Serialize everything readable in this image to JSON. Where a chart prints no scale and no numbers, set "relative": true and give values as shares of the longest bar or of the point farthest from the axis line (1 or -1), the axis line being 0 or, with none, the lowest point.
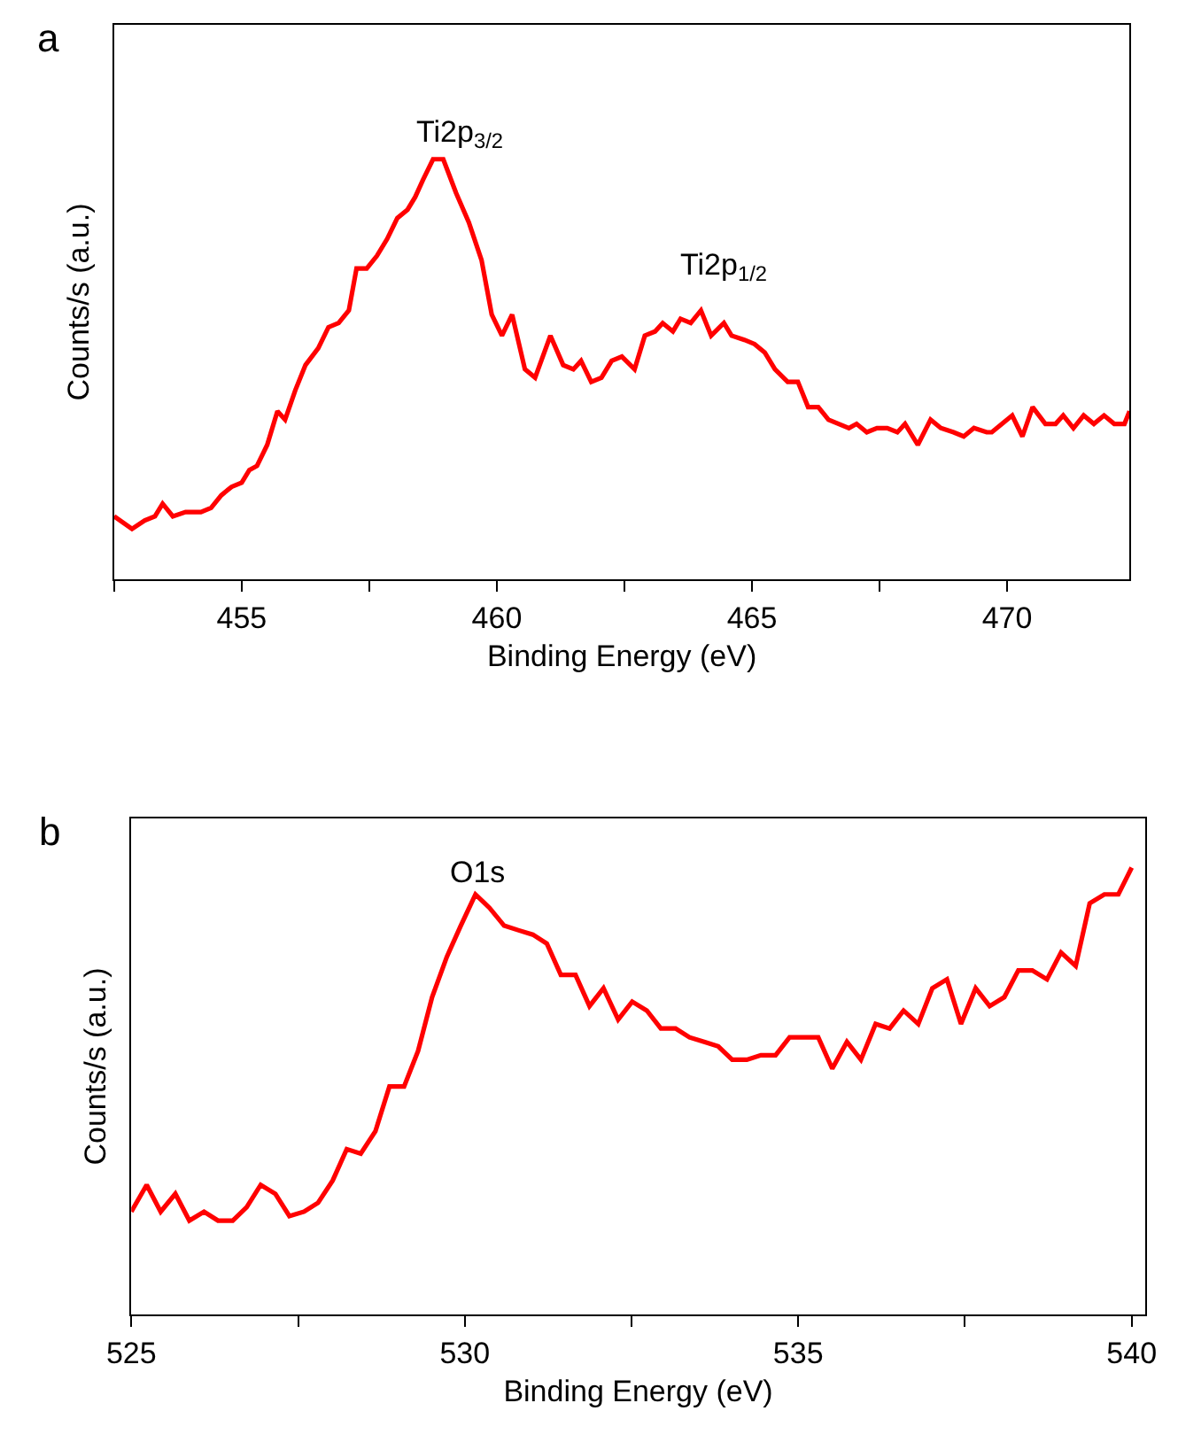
{
  "chart_data": [
    {
      "type": "line",
      "relative": true,
      "xlabel": "Binding Energy (eV)",
      "ylabel": "Counts/s (a.u.)",
      "xlim": [
        452.5,
        472.4
      ],
      "xticks": [
        {
          "value": 452.5,
          "label": null
        },
        455,
        {
          "value": 457.5,
          "label": null
        },
        460,
        {
          "value": 462.5,
          "label": null
        },
        465,
        {
          "value": 467.5,
          "label": null
        },
        470
      ],
      "marker": "none",
      "line_style": "solid",
      "annotations": [
        "a",
        "Ti2p$_{3/2}$",
        "Ti2p$_{1/2}$"
      ],
      "series": [
        {
          "color": "#ff0000",
          "x": [
            452.5,
            452.85,
            453.1,
            453.3,
            453.45,
            453.65,
            453.9,
            454.2,
            454.4,
            454.6,
            454.8,
            455.0,
            455.15,
            455.3,
            455.5,
            455.7,
            455.85,
            456.05,
            456.25,
            456.5,
            456.7,
            456.9,
            457.1,
            457.25,
            457.45,
            457.65,
            457.85,
            458.05,
            458.25,
            458.4,
            458.55,
            458.75,
            458.95,
            459.2,
            459.45,
            459.7,
            459.9,
            460.1,
            460.3,
            460.55,
            460.75,
            461.05,
            461.3,
            461.5,
            461.65,
            461.85,
            462.05,
            462.25,
            462.45,
            462.7,
            462.9,
            463.1,
            463.25,
            463.45,
            463.6,
            463.8,
            464.0,
            464.2,
            464.45,
            464.6,
            464.85,
            465.05,
            465.25,
            465.45,
            465.7,
            465.9,
            466.1,
            466.3,
            466.5,
            466.7,
            466.9,
            467.05,
            467.25,
            467.45,
            467.65,
            467.85,
            468.0,
            468.25,
            468.5,
            468.7,
            468.95,
            469.15,
            469.35,
            469.6,
            469.7,
            469.9,
            470.1,
            470.3,
            470.5,
            470.75,
            470.95,
            471.1,
            471.3,
            471.5,
            471.7,
            471.9,
            472.1,
            472.3,
            472.4
          ],
          "values": [
            0.15,
            0.12,
            0.14,
            0.15,
            0.18,
            0.15,
            0.16,
            0.16,
            0.17,
            0.2,
            0.22,
            0.23,
            0.26,
            0.27,
            0.32,
            0.4,
            0.38,
            0.45,
            0.51,
            0.55,
            0.6,
            0.61,
            0.64,
            0.74,
            0.74,
            0.77,
            0.81,
            0.86,
            0.88,
            0.91,
            0.95,
            1.0,
            1.0,
            0.92,
            0.85,
            0.76,
            0.63,
            0.58,
            0.63,
            0.5,
            0.48,
            0.58,
            0.51,
            0.5,
            0.52,
            0.47,
            0.48,
            0.52,
            0.53,
            0.5,
            0.58,
            0.59,
            0.61,
            0.59,
            0.62,
            0.61,
            0.64,
            0.58,
            0.61,
            0.58,
            0.57,
            0.56,
            0.54,
            0.5,
            0.47,
            0.47,
            0.41,
            0.41,
            0.38,
            0.37,
            0.36,
            0.37,
            0.35,
            0.36,
            0.36,
            0.35,
            0.37,
            0.32,
            0.38,
            0.36,
            0.35,
            0.34,
            0.36,
            0.35,
            0.35,
            0.37,
            0.39,
            0.34,
            0.41,
            0.37,
            0.37,
            0.39,
            0.36,
            0.39,
            0.37,
            0.39,
            0.37,
            0.37,
            0.4
          ]
        }
      ]
    },
    {
      "type": "line",
      "relative": true,
      "xlabel": "Binding Energy (eV)",
      "ylabel": "Counts/s (a.u.)",
      "xlim": [
        525,
        540.2
      ],
      "xticks": [
        525,
        {
          "value": 527.5,
          "label": null
        },
        530,
        {
          "value": 532.5,
          "label": null
        },
        535,
        {
          "value": 537.5,
          "label": null
        },
        540
      ],
      "marker": "none",
      "line_style": "solid",
      "annotations": [
        "b",
        "O1s"
      ],
      "series": [
        {
          "color": "#ff0000",
          "x": [
            525.0,
            525.23,
            525.44,
            525.66,
            525.87,
            526.09,
            526.3,
            526.52,
            526.73,
            526.94,
            527.16,
            527.37,
            527.59,
            527.8,
            528.02,
            528.23,
            528.44,
            528.66,
            528.87,
            529.09,
            529.3,
            529.51,
            529.73,
            529.94,
            530.16,
            530.37,
            530.59,
            530.8,
            531.02,
            531.23,
            531.44,
            531.66,
            531.87,
            532.08,
            532.3,
            532.51,
            532.73,
            532.94,
            533.16,
            533.37,
            533.59,
            533.8,
            534.01,
            534.23,
            534.44,
            534.66,
            534.87,
            535.08,
            535.3,
            535.51,
            535.73,
            535.94,
            536.16,
            536.37,
            536.58,
            536.8,
            537.01,
            537.23,
            537.44,
            537.66,
            537.87,
            538.09,
            538.3,
            538.51,
            538.73,
            538.94,
            539.16,
            539.37,
            539.59,
            539.8,
            540.0
          ],
          "values": [
            0.23,
            0.29,
            0.23,
            0.27,
            0.21,
            0.23,
            0.21,
            0.21,
            0.24,
            0.29,
            0.27,
            0.22,
            0.23,
            0.25,
            0.3,
            0.37,
            0.36,
            0.41,
            0.51,
            0.51,
            0.59,
            0.71,
            0.8,
            0.87,
            0.94,
            0.91,
            0.87,
            0.86,
            0.85,
            0.83,
            0.76,
            0.76,
            0.69,
            0.73,
            0.66,
            0.7,
            0.68,
            0.64,
            0.64,
            0.62,
            0.61,
            0.6,
            0.57,
            0.57,
            0.58,
            0.58,
            0.62,
            0.62,
            0.62,
            0.55,
            0.61,
            0.57,
            0.65,
            0.64,
            0.68,
            0.65,
            0.73,
            0.75,
            0.65,
            0.73,
            0.69,
            0.71,
            0.77,
            0.77,
            0.75,
            0.81,
            0.78,
            0.92,
            0.94,
            0.94,
            1.0
          ]
        }
      ]
    }
  ]
}
